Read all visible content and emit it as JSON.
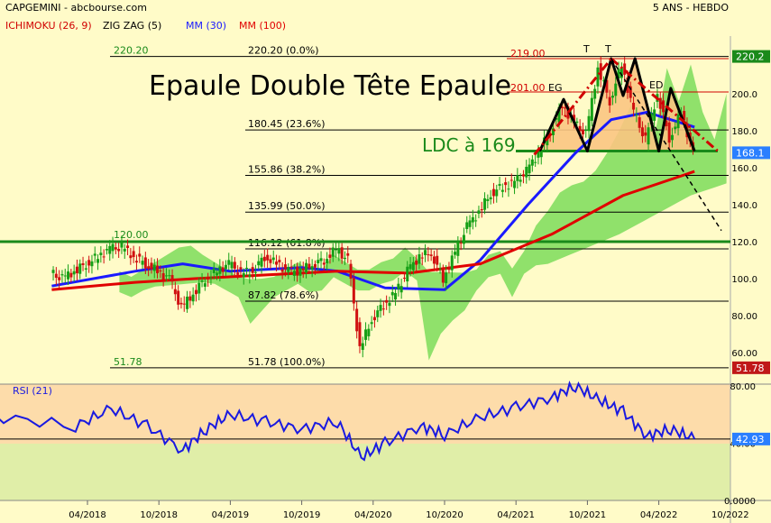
{
  "header": {
    "title": "CAPGEMINI - abcbourse.com",
    "period": "5 ANS - HEBDO",
    "legend": [
      {
        "label": "ICHIMOKU (26, 9)",
        "color": "#d00000"
      },
      {
        "label": "ZIG ZAG (5)",
        "color": "#000000"
      },
      {
        "label": "MM (30)",
        "color": "#1a1aff"
      },
      {
        "label": "MM (100)",
        "color": "#e00000"
      }
    ]
  },
  "annotations": {
    "headline": "Epaule Double Tête Epaule",
    "ldc": "LDC à 169",
    "level_labels": [
      "219.00",
      "201.00"
    ],
    "pattern_labels": [
      "EG",
      "T",
      "T",
      "ED"
    ]
  },
  "colors": {
    "background": "#fffbc8",
    "rsi_upper": "#fddcaa",
    "rsi_lower": "#e0eea8",
    "cloud": "#7ddc5a",
    "mm30": "#1a1aff",
    "mm100": "#e00000",
    "candle_up": "#16a016",
    "candle_down": "#d01010",
    "pattern_fill": "#fbc582",
    "level_green": "#1a8a1a"
  },
  "chart_data": [
    {
      "type": "candlestick",
      "title": "CAPGEMINI - abcbourse.com",
      "period": "5 ANS - HEBDO",
      "x_ticks": [
        "04/2018",
        "10/2018",
        "04/2019",
        "10/2019",
        "04/2020",
        "10/2020",
        "04/2021",
        "10/2021",
        "04/2022",
        "10/2022"
      ],
      "y_axis": {
        "scale": "linear",
        "ticks": [
          "60.00",
          "80.00",
          "100.0",
          "120.0",
          "140.0",
          "160.0",
          "180.0",
          "200.0"
        ],
        "range": [
          46,
          230
        ]
      },
      "price_badges": [
        {
          "label": "220.2",
          "value": 220.2,
          "color": "#1a8a1a"
        },
        {
          "label": "168.1",
          "value": 168.1,
          "color": "#2a7fff"
        },
        {
          "label": "51.78",
          "value": 51.78,
          "color": "#c01818"
        }
      ],
      "fibonacci": {
        "start_label": "220.20",
        "end_label": "51.78",
        "levels": [
          {
            "label": "220.20 (0.0%)",
            "value": 220.2
          },
          {
            "label": "180.45 (23.6%)",
            "value": 180.45
          },
          {
            "label": "155.86 (38.2%)",
            "value": 155.86
          },
          {
            "label": "135.99 (50.0%)",
            "value": 135.99
          },
          {
            "label": "116.12 (61.8%)",
            "value": 116.12
          },
          {
            "label": "87.82 (78.6%)",
            "value": 87.82
          },
          {
            "label": "51.78 (100.0%)",
            "value": 51.78
          }
        ]
      },
      "horizontal_levels": [
        {
          "label": "120.00",
          "value": 120.0
        },
        {
          "label": "219.00",
          "value": 219.0
        },
        {
          "label": "201.00",
          "value": 201.0
        }
      ],
      "neckline": 169,
      "close_series": [
        {
          "date": "2018-01",
          "value": 103
        },
        {
          "date": "2018-02",
          "value": 100
        },
        {
          "date": "2018-03",
          "value": 104
        },
        {
          "date": "2018-04",
          "value": 108
        },
        {
          "date": "2018-05",
          "value": 112
        },
        {
          "date": "2018-06",
          "value": 116
        },
        {
          "date": "2018-07",
          "value": 117
        },
        {
          "date": "2018-08",
          "value": 112
        },
        {
          "date": "2018-09",
          "value": 108
        },
        {
          "date": "2018-10",
          "value": 104
        },
        {
          "date": "2018-11",
          "value": 100
        },
        {
          "date": "2018-12",
          "value": 84
        },
        {
          "date": "2019-01",
          "value": 92
        },
        {
          "date": "2019-02",
          "value": 100
        },
        {
          "date": "2019-03",
          "value": 104
        },
        {
          "date": "2019-04",
          "value": 108
        },
        {
          "date": "2019-05",
          "value": 103
        },
        {
          "date": "2019-06",
          "value": 104
        },
        {
          "date": "2019-07",
          "value": 112
        },
        {
          "date": "2019-08",
          "value": 108
        },
        {
          "date": "2019-09",
          "value": 104
        },
        {
          "date": "2019-10",
          "value": 104
        },
        {
          "date": "2019-11",
          "value": 108
        },
        {
          "date": "2019-12",
          "value": 110
        },
        {
          "date": "2020-01",
          "value": 116
        },
        {
          "date": "2020-02",
          "value": 110
        },
        {
          "date": "2020-03",
          "value": 62
        },
        {
          "date": "2020-04",
          "value": 78
        },
        {
          "date": "2020-05",
          "value": 86
        },
        {
          "date": "2020-06",
          "value": 92
        },
        {
          "date": "2020-07",
          "value": 104
        },
        {
          "date": "2020-08",
          "value": 112
        },
        {
          "date": "2020-09",
          "value": 114
        },
        {
          "date": "2020-10",
          "value": 100
        },
        {
          "date": "2020-11",
          "value": 114
        },
        {
          "date": "2020-12",
          "value": 128
        },
        {
          "date": "2021-01",
          "value": 136
        },
        {
          "date": "2021-02",
          "value": 146
        },
        {
          "date": "2021-03",
          "value": 150
        },
        {
          "date": "2021-04",
          "value": 152
        },
        {
          "date": "2021-05",
          "value": 158
        },
        {
          "date": "2021-06",
          "value": 168
        },
        {
          "date": "2021-07",
          "value": 180
        },
        {
          "date": "2021-08",
          "value": 194
        },
        {
          "date": "2021-09",
          "value": 184
        },
        {
          "date": "2021-10",
          "value": 178
        },
        {
          "date": "2021-11",
          "value": 214
        },
        {
          "date": "2021-12",
          "value": 196
        },
        {
          "date": "2022-01",
          "value": 216
        },
        {
          "date": "2022-02",
          "value": 190
        },
        {
          "date": "2022-03",
          "value": 175
        },
        {
          "date": "2022-04",
          "value": 200
        },
        {
          "date": "2022-05",
          "value": 176
        },
        {
          "date": "2022-06",
          "value": 190
        },
        {
          "date": "2022-07",
          "value": 168
        }
      ],
      "series": [
        {
          "name": "MM (30)",
          "color": "#1a1aff",
          "points": [
            {
              "date": "2018-01",
              "value": 96
            },
            {
              "date": "2018-08",
              "value": 104
            },
            {
              "date": "2018-12",
              "value": 108
            },
            {
              "date": "2019-04",
              "value": 104
            },
            {
              "date": "2019-10",
              "value": 106
            },
            {
              "date": "2020-01",
              "value": 104
            },
            {
              "date": "2020-05",
              "value": 95
            },
            {
              "date": "2020-10",
              "value": 94
            },
            {
              "date": "2021-01",
              "value": 110
            },
            {
              "date": "2021-05",
              "value": 140
            },
            {
              "date": "2021-09",
              "value": 168
            },
            {
              "date": "2021-12",
              "value": 186
            },
            {
              "date": "2022-03",
              "value": 190
            },
            {
              "date": "2022-07",
              "value": 182
            }
          ]
        },
        {
          "name": "MM (100)",
          "color": "#e00000",
          "points": [
            {
              "date": "2018-01",
              "value": 94
            },
            {
              "date": "2018-08",
              "value": 98
            },
            {
              "date": "2019-01",
              "value": 100
            },
            {
              "date": "2019-07",
              "value": 102
            },
            {
              "date": "2020-01",
              "value": 104
            },
            {
              "date": "2020-07",
              "value": 103
            },
            {
              "date": "2021-01",
              "value": 108
            },
            {
              "date": "2021-07",
              "value": 124
            },
            {
              "date": "2022-01",
              "value": 145
            },
            {
              "date": "2022-07",
              "value": 158
            }
          ]
        }
      ],
      "zigzag_pattern": [
        {
          "date": "2021-06",
          "value": 169
        },
        {
          "date": "2021-08",
          "value": 197
        },
        {
          "date": "2021-10",
          "value": 169
        },
        {
          "date": "2021-12",
          "value": 219
        },
        {
          "date": "2022-01",
          "value": 199
        },
        {
          "date": "2022-02",
          "value": 219
        },
        {
          "date": "2022-04",
          "value": 169
        },
        {
          "date": "2022-05",
          "value": 203
        },
        {
          "date": "2022-07",
          "value": 169
        }
      ]
    },
    {
      "type": "line",
      "title": "RSI (21)",
      "y_axis": {
        "ticks": [
          "0.0000",
          "40.00",
          "80.00"
        ],
        "range": [
          0,
          100
        ]
      },
      "reference_level": 42.93,
      "value_badge": "42.93",
      "series": [
        {
          "name": "RSI (21)",
          "color": "#1a1ae0",
          "points": [
            {
              "date": "2018-01",
              "value": 60
            },
            {
              "date": "2018-03",
              "value": 52
            },
            {
              "date": "2018-06",
              "value": 64
            },
            {
              "date": "2018-09",
              "value": 52
            },
            {
              "date": "2018-12",
              "value": 35
            },
            {
              "date": "2019-02",
              "value": 50
            },
            {
              "date": "2019-04",
              "value": 60
            },
            {
              "date": "2019-07",
              "value": 55
            },
            {
              "date": "2019-10",
              "value": 50
            },
            {
              "date": "2020-01",
              "value": 55
            },
            {
              "date": "2020-03",
              "value": 30
            },
            {
              "date": "2020-05",
              "value": 40
            },
            {
              "date": "2020-08",
              "value": 52
            },
            {
              "date": "2020-10",
              "value": 46
            },
            {
              "date": "2021-01",
              "value": 58
            },
            {
              "date": "2021-04",
              "value": 65
            },
            {
              "date": "2021-07",
              "value": 72
            },
            {
              "date": "2021-09",
              "value": 80
            },
            {
              "date": "2021-11",
              "value": 70
            },
            {
              "date": "2022-01",
              "value": 62
            },
            {
              "date": "2022-03",
              "value": 45
            },
            {
              "date": "2022-05",
              "value": 50
            },
            {
              "date": "2022-07",
              "value": 42.93
            }
          ]
        }
      ]
    }
  ]
}
